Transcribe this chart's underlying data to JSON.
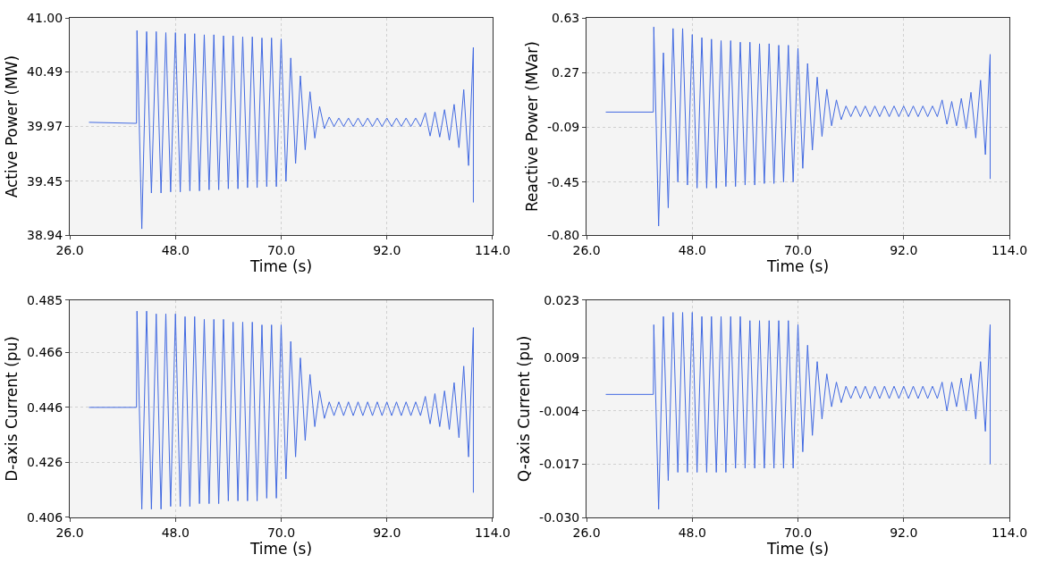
{
  "chart_data": [
    {
      "type": "line",
      "xlabel": "Time (s)",
      "ylabel": "Active Power (MW)",
      "grid": true,
      "xlim": [
        26,
        114
      ],
      "ylim": [
        38.94,
        41.0
      ],
      "xticks": [
        {
          "value": 26,
          "label": "26.0"
        },
        {
          "value": 48,
          "label": "48.0"
        },
        {
          "value": 70,
          "label": "70.0"
        },
        {
          "value": 92,
          "label": "92.0"
        },
        {
          "value": 114,
          "label": "114.0"
        }
      ],
      "yticks": [
        {
          "value": 38.94,
          "label": "38.94"
        },
        39.45,
        39.97,
        40.49,
        {
          "value": 41.0,
          "label": "41.00"
        }
      ],
      "series": [
        {
          "color": "#4169e1",
          "x": [
            30,
            39.9,
            40,
            41,
            42,
            43,
            44,
            45,
            46,
            47,
            48,
            49,
            50,
            51,
            52,
            53,
            54,
            55,
            56,
            57,
            58,
            59,
            60,
            61,
            62,
            63,
            64,
            65,
            66,
            67,
            68,
            69,
            70,
            71,
            72,
            73,
            74,
            75,
            76,
            77,
            78,
            79,
            80,
            81,
            82,
            83,
            84,
            85,
            86,
            87,
            88,
            89,
            90,
            91,
            92,
            93,
            94,
            95,
            96,
            97,
            98,
            99,
            100,
            101,
            102,
            103,
            104,
            105,
            106,
            107,
            108,
            109,
            110,
            110
          ],
          "values": [
            40.01,
            40.0,
            40.88,
            39.0,
            40.87,
            39.34,
            40.87,
            39.34,
            40.86,
            39.35,
            40.86,
            39.35,
            40.85,
            39.36,
            40.85,
            39.36,
            40.84,
            39.37,
            40.84,
            39.37,
            40.83,
            39.38,
            40.83,
            39.38,
            40.82,
            39.39,
            40.82,
            39.39,
            40.81,
            39.4,
            40.81,
            39.4,
            40.8,
            39.45,
            40.62,
            39.62,
            40.45,
            39.75,
            40.3,
            39.86,
            40.16,
            39.95,
            40.06,
            39.97,
            40.05,
            39.97,
            40.05,
            39.97,
            40.05,
            39.97,
            40.05,
            39.97,
            40.05,
            39.97,
            40.05,
            39.97,
            40.05,
            39.97,
            40.05,
            39.97,
            40.05,
            39.97,
            40.1,
            39.88,
            40.11,
            39.87,
            40.13,
            39.84,
            40.18,
            39.77,
            40.32,
            39.6,
            40.72,
            39.25
          ]
        }
      ]
    },
    {
      "type": "line",
      "xlabel": "Time (s)",
      "ylabel": "Reactive Power (MVar)",
      "grid": true,
      "xlim": [
        26,
        114
      ],
      "ylim": [
        -0.8,
        0.63
      ],
      "xticks": [
        {
          "value": 26,
          "label": "26.0"
        },
        {
          "value": 48,
          "label": "48.0"
        },
        {
          "value": 70,
          "label": "70.0"
        },
        {
          "value": 92,
          "label": "92.0"
        },
        {
          "value": 114,
          "label": "114.0"
        }
      ],
      "yticks": [
        {
          "value": -0.8,
          "label": "-0.80"
        },
        -0.45,
        -0.09,
        0.27,
        0.63
      ],
      "series": [
        {
          "color": "#4169e1",
          "x": [
            30,
            39.9,
            40,
            41,
            42,
            43,
            44,
            45,
            46,
            47,
            48,
            49,
            50,
            51,
            52,
            53,
            54,
            55,
            56,
            57,
            58,
            59,
            60,
            61,
            62,
            63,
            64,
            65,
            66,
            67,
            68,
            69,
            70,
            71,
            72,
            73,
            74,
            75,
            76,
            77,
            78,
            79,
            80,
            81,
            82,
            83,
            84,
            85,
            86,
            87,
            88,
            89,
            90,
            91,
            92,
            93,
            94,
            95,
            96,
            97,
            98,
            99,
            100,
            101,
            102,
            103,
            104,
            105,
            106,
            107,
            108,
            109,
            110,
            110
          ],
          "values": [
            0.01,
            0.01,
            0.57,
            -0.74,
            0.4,
            -0.62,
            0.56,
            -0.45,
            0.56,
            -0.47,
            0.52,
            -0.49,
            0.5,
            -0.49,
            0.49,
            -0.49,
            0.48,
            -0.48,
            0.48,
            -0.48,
            0.47,
            -0.47,
            0.47,
            -0.47,
            0.46,
            -0.46,
            0.46,
            -0.46,
            0.45,
            -0.45,
            0.45,
            -0.45,
            0.43,
            -0.36,
            0.33,
            -0.24,
            0.24,
            -0.15,
            0.16,
            -0.08,
            0.09,
            -0.04,
            0.05,
            -0.02,
            0.05,
            -0.02,
            0.05,
            -0.02,
            0.05,
            -0.02,
            0.05,
            -0.02,
            0.05,
            -0.02,
            0.05,
            -0.02,
            0.05,
            -0.02,
            0.05,
            -0.02,
            0.05,
            -0.02,
            0.09,
            -0.07,
            0.08,
            -0.08,
            0.1,
            -0.1,
            0.14,
            -0.16,
            0.22,
            -0.27,
            0.39,
            -0.43
          ]
        }
      ]
    },
    {
      "type": "line",
      "xlabel": "Time (s)",
      "ylabel": "D-axis Current (pu)",
      "grid": true,
      "xlim": [
        26,
        114
      ],
      "ylim": [
        0.406,
        0.485
      ],
      "xticks": [
        {
          "value": 26,
          "label": "26.0"
        },
        {
          "value": 48,
          "label": "48.0"
        },
        {
          "value": 70,
          "label": "70.0"
        },
        {
          "value": 92,
          "label": "92.0"
        },
        {
          "value": 114,
          "label": "114.0"
        }
      ],
      "yticks": [
        0.406,
        0.426,
        0.446,
        0.466,
        0.485
      ],
      "series": [
        {
          "color": "#4169e1",
          "x": [
            30,
            39.9,
            40,
            41,
            42,
            43,
            44,
            45,
            46,
            47,
            48,
            49,
            50,
            51,
            52,
            53,
            54,
            55,
            56,
            57,
            58,
            59,
            60,
            61,
            62,
            63,
            64,
            65,
            66,
            67,
            68,
            69,
            70,
            71,
            72,
            73,
            74,
            75,
            76,
            77,
            78,
            79,
            80,
            81,
            82,
            83,
            84,
            85,
            86,
            87,
            88,
            89,
            90,
            91,
            92,
            93,
            94,
            95,
            96,
            97,
            98,
            99,
            100,
            101,
            102,
            103,
            104,
            105,
            106,
            107,
            108,
            109,
            110,
            110
          ],
          "values": [
            0.446,
            0.446,
            0.481,
            0.409,
            0.481,
            0.409,
            0.48,
            0.409,
            0.48,
            0.41,
            0.48,
            0.41,
            0.479,
            0.41,
            0.479,
            0.411,
            0.478,
            0.411,
            0.478,
            0.411,
            0.478,
            0.412,
            0.477,
            0.412,
            0.477,
            0.412,
            0.477,
            0.412,
            0.476,
            0.413,
            0.476,
            0.413,
            0.476,
            0.42,
            0.47,
            0.428,
            0.464,
            0.434,
            0.458,
            0.439,
            0.452,
            0.442,
            0.448,
            0.443,
            0.448,
            0.443,
            0.448,
            0.443,
            0.448,
            0.443,
            0.448,
            0.443,
            0.448,
            0.443,
            0.448,
            0.443,
            0.448,
            0.443,
            0.448,
            0.443,
            0.448,
            0.443,
            0.45,
            0.44,
            0.451,
            0.439,
            0.452,
            0.438,
            0.455,
            0.435,
            0.461,
            0.428,
            0.475,
            0.415
          ]
        }
      ]
    },
    {
      "type": "line",
      "xlabel": "Time (s)",
      "ylabel": "Q-axis Current (pu)",
      "grid": true,
      "xlim": [
        26,
        114
      ],
      "ylim": [
        -0.03,
        0.023
      ],
      "xticks": [
        {
          "value": 26,
          "label": "26.0"
        },
        {
          "value": 48,
          "label": "48.0"
        },
        {
          "value": 70,
          "label": "70.0"
        },
        {
          "value": 92,
          "label": "92.0"
        },
        {
          "value": 114,
          "label": "114.0"
        }
      ],
      "yticks": [
        {
          "value": -0.03,
          "label": "-0.030"
        },
        -0.017,
        -0.004,
        0.009,
        0.023
      ],
      "series": [
        {
          "color": "#4169e1",
          "x": [
            30,
            39.9,
            40,
            41,
            42,
            43,
            44,
            45,
            46,
            47,
            48,
            49,
            50,
            51,
            52,
            53,
            54,
            55,
            56,
            57,
            58,
            59,
            60,
            61,
            62,
            63,
            64,
            65,
            66,
            67,
            68,
            69,
            70,
            71,
            72,
            73,
            74,
            75,
            76,
            77,
            78,
            79,
            80,
            81,
            82,
            83,
            84,
            85,
            86,
            87,
            88,
            89,
            90,
            91,
            92,
            93,
            94,
            95,
            96,
            97,
            98,
            99,
            100,
            101,
            102,
            103,
            104,
            105,
            106,
            107,
            108,
            109,
            110,
            110
          ],
          "values": [
            0.0,
            0.0,
            0.017,
            -0.028,
            0.019,
            -0.021,
            0.02,
            -0.019,
            0.02,
            -0.019,
            0.02,
            -0.019,
            0.019,
            -0.019,
            0.019,
            -0.019,
            0.019,
            -0.019,
            0.019,
            -0.018,
            0.019,
            -0.018,
            0.018,
            -0.018,
            0.018,
            -0.018,
            0.018,
            -0.018,
            0.018,
            -0.018,
            0.018,
            -0.018,
            0.017,
            -0.014,
            0.012,
            -0.01,
            0.008,
            -0.006,
            0.005,
            -0.003,
            0.003,
            -0.002,
            0.002,
            -0.001,
            0.002,
            -0.001,
            0.002,
            -0.001,
            0.002,
            -0.001,
            0.002,
            -0.001,
            0.002,
            -0.001,
            0.002,
            -0.001,
            0.002,
            -0.001,
            0.002,
            -0.001,
            0.002,
            -0.001,
            0.003,
            -0.004,
            0.003,
            -0.003,
            0.004,
            -0.004,
            0.005,
            -0.006,
            0.008,
            -0.009,
            0.017,
            -0.017
          ]
        }
      ]
    }
  ]
}
